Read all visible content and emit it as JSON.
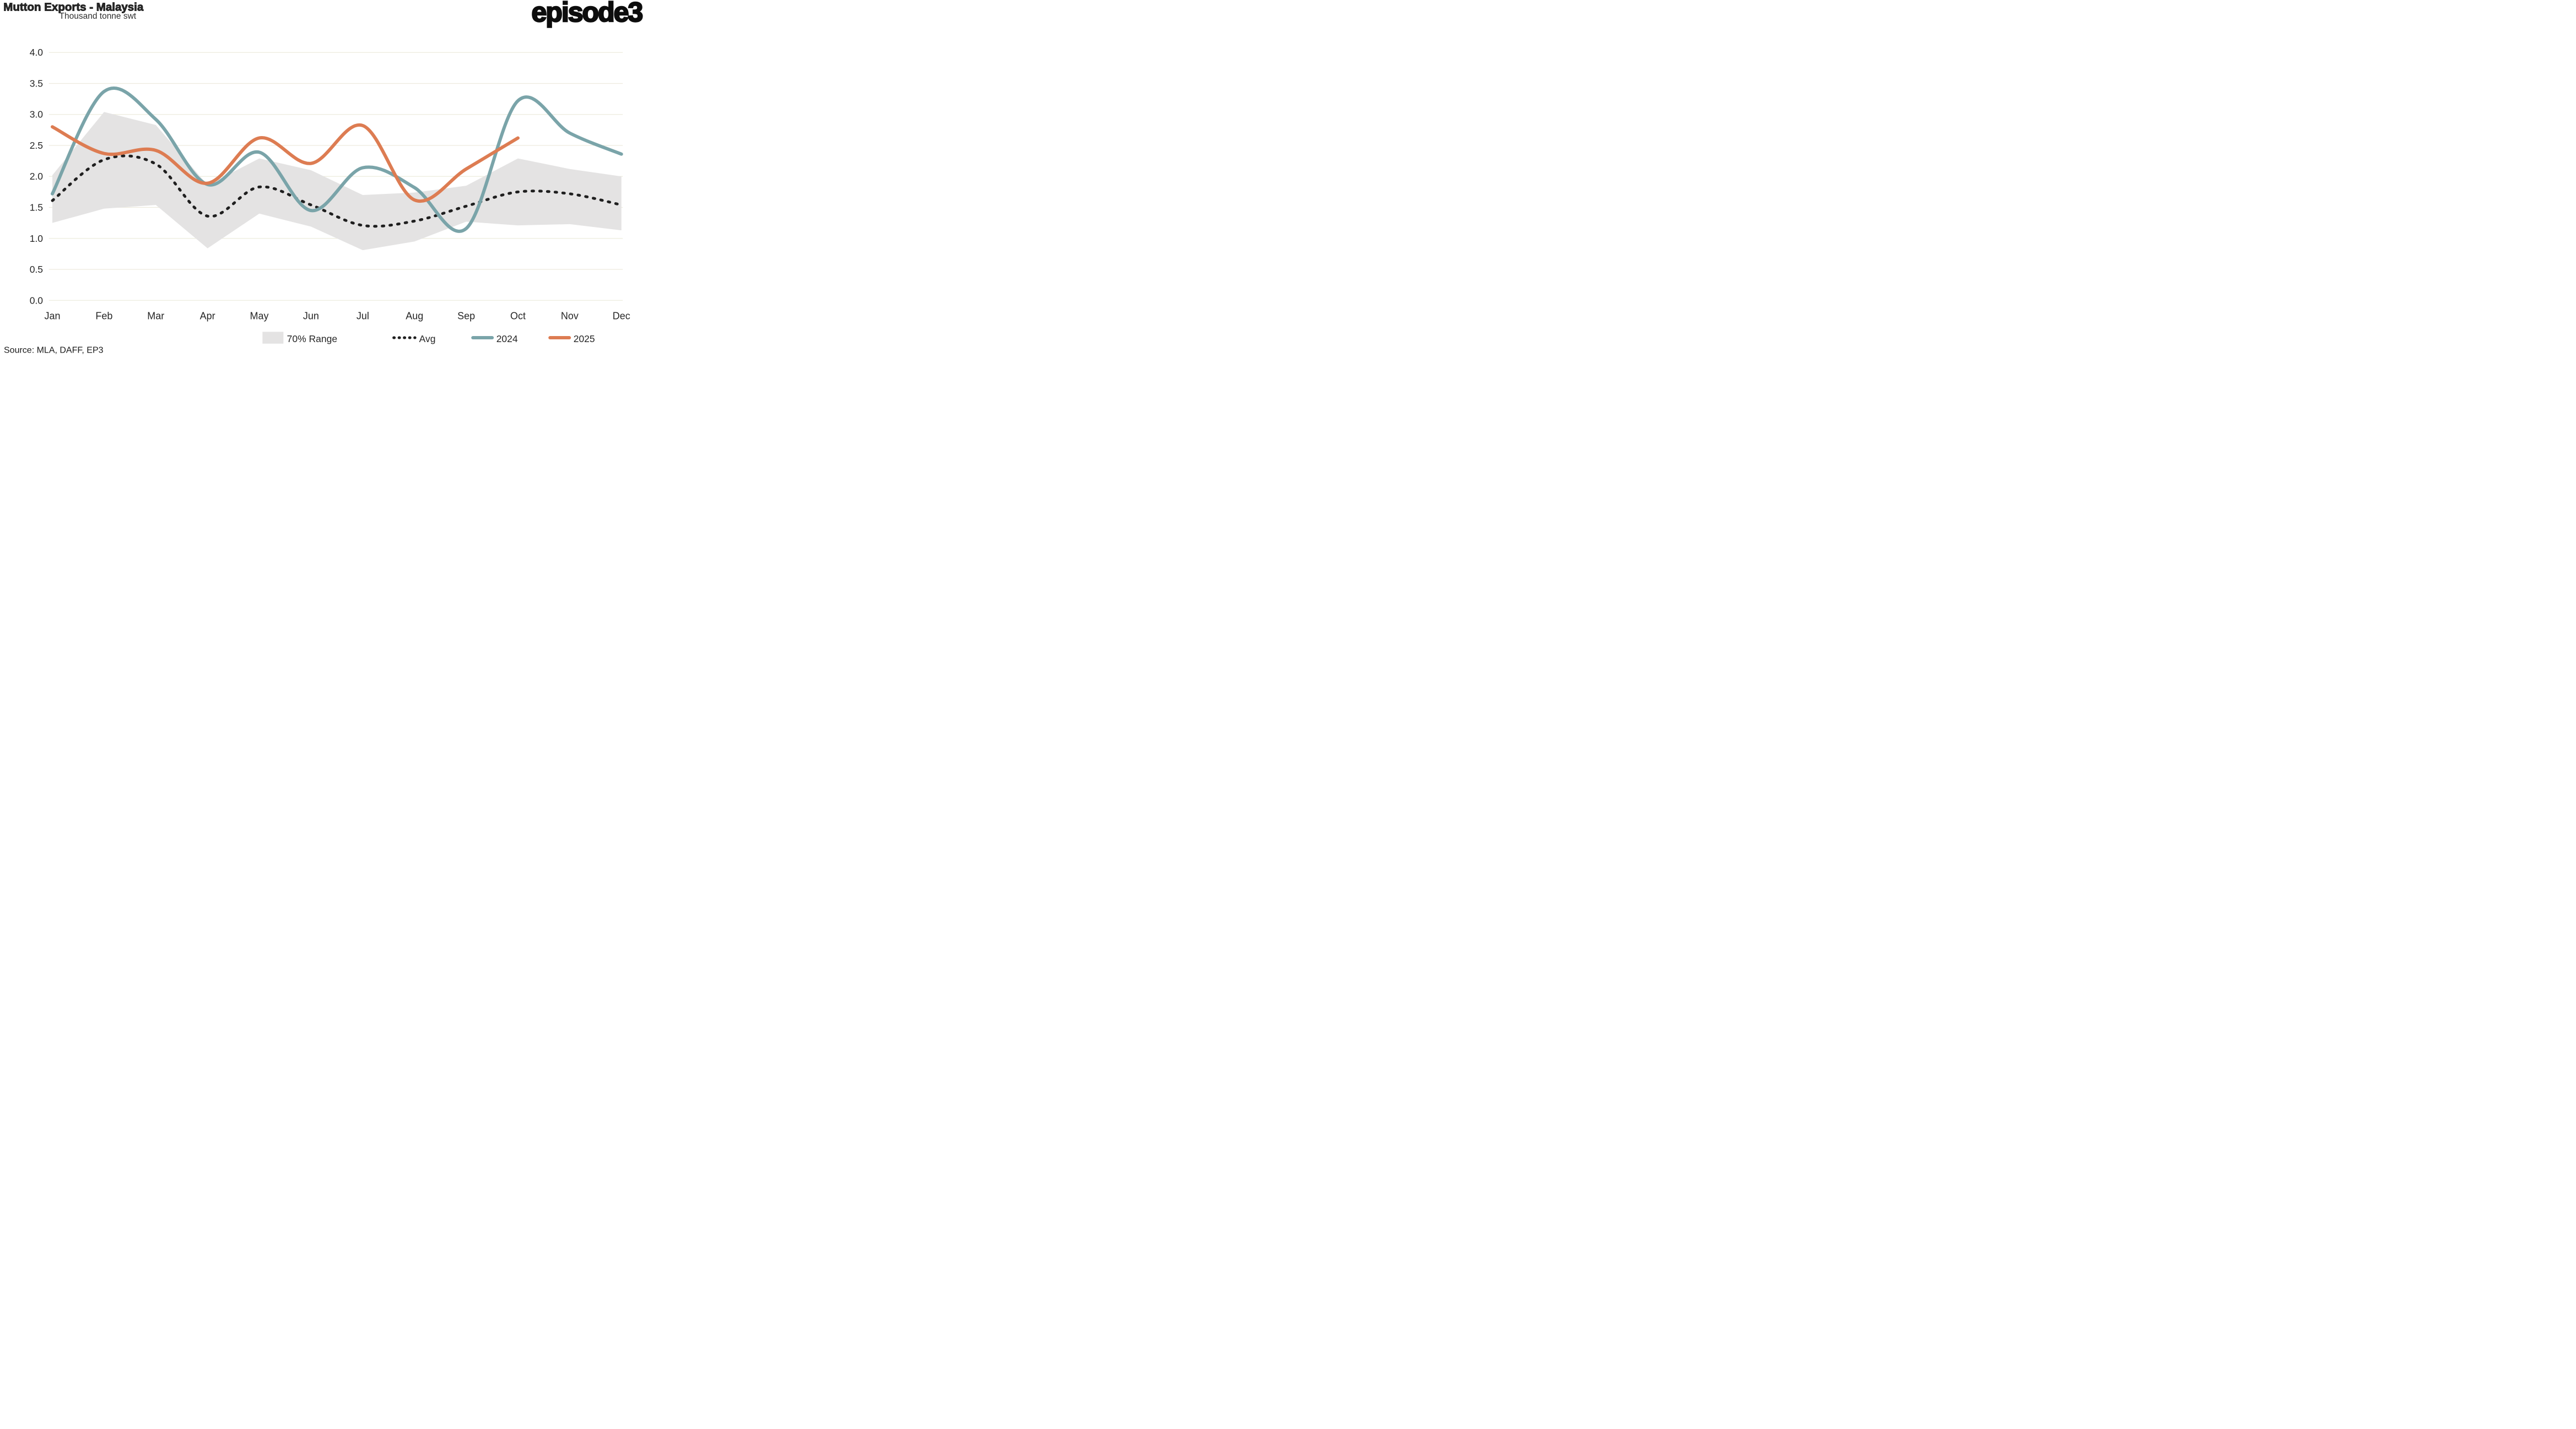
{
  "header": {
    "title": "Mutton Exports - Malaysia",
    "subtitle": "Thousand tonne swt",
    "logo": "episode3"
  },
  "footer": {
    "source": "Source: MLA, DAFF, EP3"
  },
  "legend": {
    "position": "bottom",
    "items": [
      {
        "label": "70% Range",
        "swatch": "band"
      },
      {
        "label": "Avg",
        "swatch": "dotted"
      },
      {
        "label": "2024",
        "swatch": "line-teal"
      },
      {
        "label": "2025",
        "swatch": "line-orange"
      }
    ]
  },
  "colors": {
    "teal_2024": "#7AA4A9",
    "orange_2025": "#DD7C52",
    "band_gray": "#E4E3E3",
    "avg_dot": "#1F1F1F",
    "gridline": "#EDEBDE",
    "text_dark": "#262626"
  },
  "chart_data": {
    "type": "line",
    "title": "Mutton Exports - Malaysia",
    "ylabel": "Thousand tonne swt",
    "xlabel": "",
    "ylim": [
      0.0,
      4.0
    ],
    "ytick_step": 0.5,
    "yticks": [
      "0.0",
      "0.5",
      "1.0",
      "1.5",
      "2.0",
      "2.5",
      "3.0",
      "3.5",
      "4.0"
    ],
    "grid": true,
    "legend_position": "bottom",
    "categories": [
      "Jan",
      "Feb",
      "Mar",
      "Apr",
      "May",
      "Jun",
      "Jul",
      "Aug",
      "Sep",
      "Oct",
      "Nov",
      "Dec"
    ],
    "series": [
      {
        "name": "70% Range",
        "kind": "band",
        "low": [
          1.25,
          1.48,
          1.54,
          0.84,
          1.4,
          1.19,
          0.81,
          0.95,
          1.27,
          1.21,
          1.23,
          1.13
        ],
        "high": [
          2.02,
          3.04,
          2.83,
          1.86,
          2.29,
          2.1,
          1.7,
          1.74,
          1.85,
          2.29,
          2.12,
          2.0
        ]
      },
      {
        "name": "Avg",
        "kind": "dotted",
        "values": [
          1.61,
          2.27,
          2.2,
          1.36,
          1.83,
          1.54,
          1.21,
          1.28,
          1.52,
          1.75,
          1.72,
          1.54
        ]
      },
      {
        "name": "2024",
        "kind": "line",
        "values": [
          1.72,
          3.37,
          2.92,
          1.87,
          2.39,
          1.45,
          2.14,
          1.82,
          1.16,
          3.22,
          2.7,
          2.36
        ]
      },
      {
        "name": "2025",
        "kind": "line",
        "values": [
          2.8,
          2.37,
          2.42,
          1.89,
          2.62,
          2.21,
          2.82,
          1.62,
          2.12,
          2.62
        ]
      }
    ]
  }
}
